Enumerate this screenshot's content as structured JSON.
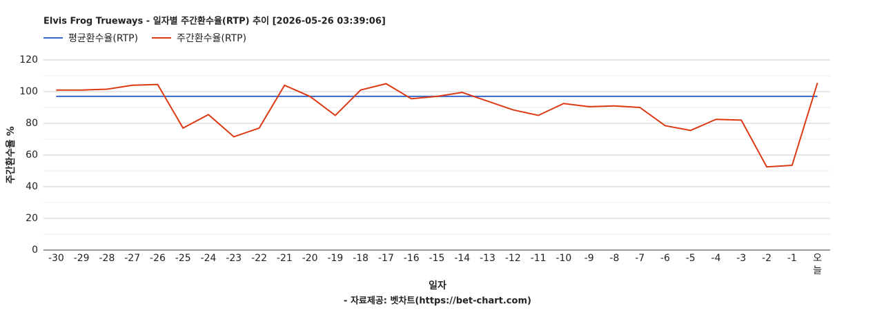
{
  "chart_data": {
    "type": "line",
    "title": "Elvis Frog Trueways - 일자별 주간환수율(RTP) 추이 [2026-05-26 03:39:06]",
    "x_label": "일자",
    "y_label": "주간환수율 %",
    "footer": "- 자료제공: 벳차트(https://bet-chart.com)",
    "categories": [
      "-30",
      "-29",
      "-28",
      "-27",
      "-26",
      "-25",
      "-24",
      "-23",
      "-22",
      "-21",
      "-20",
      "-19",
      "-18",
      "-17",
      "-16",
      "-15",
      "-14",
      "-13",
      "-12",
      "-11",
      "-10",
      "-9",
      "-8",
      "-7",
      "-6",
      "-5",
      "-4",
      "-3",
      "-2",
      "-1",
      "오늘"
    ],
    "series": [
      {
        "name": "평균환수율(RTP)",
        "color": "#3366cc",
        "values": [
          97,
          97,
          97,
          97,
          97,
          97,
          97,
          97,
          97,
          97,
          97,
          97,
          97,
          97,
          97,
          97,
          97,
          97,
          97,
          97,
          97,
          97,
          97,
          97,
          97,
          97,
          97,
          97,
          97,
          97,
          97
        ]
      },
      {
        "name": "주간환수율(RTP)",
        "color": "#dc3912",
        "values": [
          101,
          101,
          101.5,
          104,
          104.5,
          77,
          85.5,
          71.5,
          77,
          104,
          97,
          85,
          101,
          105,
          95.5,
          97,
          99.5,
          94,
          88.5,
          85,
          92.5,
          90.5,
          91,
          90,
          78.5,
          75.5,
          82.5,
          82,
          52.5,
          53.5,
          105.5
        ]
      }
    ],
    "ylim": [
      0,
      120
    ],
    "yticks": [
      0,
      20,
      40,
      60,
      80,
      100,
      120
    ],
    "minor_yticks": [
      10,
      30,
      50,
      70,
      90,
      110
    ],
    "grid": true,
    "legend": "top"
  }
}
